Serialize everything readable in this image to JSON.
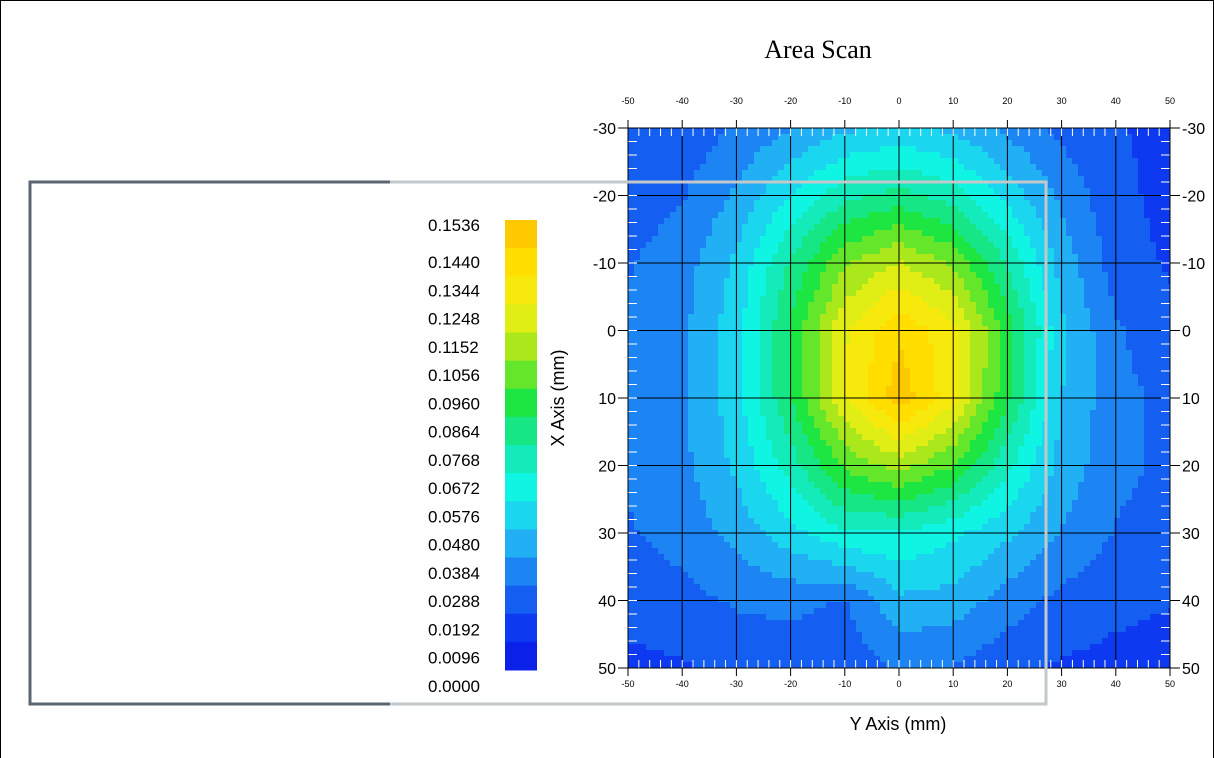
{
  "chart_data": {
    "type": "heatmap",
    "title": "Area Scan",
    "xlabel": "Y Axis (mm)",
    "ylabel": "X Axis (mm)",
    "x": [
      -50,
      -40,
      -30,
      -20,
      -10,
      0,
      10,
      20,
      30,
      40,
      50
    ],
    "y": [
      -30,
      -20,
      -10,
      0,
      10,
      20,
      30,
      40,
      50
    ],
    "xlim": [
      -50,
      50
    ],
    "ylim": [
      -30,
      50
    ],
    "x_ticks": [
      -50,
      -40,
      -30,
      -20,
      -10,
      0,
      10,
      20,
      30,
      40,
      50
    ],
    "y_ticks": [
      -30,
      -20,
      -10,
      0,
      10,
      20,
      30,
      40,
      50
    ],
    "grid": true,
    "values": [
      [
        0.02,
        0.022,
        0.03,
        0.038,
        0.046,
        0.05,
        0.046,
        0.036,
        0.026,
        0.02,
        0.016
      ],
      [
        0.024,
        0.028,
        0.04,
        0.058,
        0.074,
        0.08,
        0.072,
        0.054,
        0.036,
        0.022,
        0.016
      ],
      [
        0.028,
        0.034,
        0.05,
        0.078,
        0.104,
        0.116,
        0.104,
        0.076,
        0.044,
        0.024,
        0.018
      ],
      [
        0.03,
        0.036,
        0.054,
        0.088,
        0.124,
        0.142,
        0.128,
        0.092,
        0.05,
        0.03,
        0.022
      ],
      [
        0.03,
        0.036,
        0.054,
        0.086,
        0.124,
        0.15,
        0.128,
        0.088,
        0.048,
        0.032,
        0.026
      ],
      [
        0.03,
        0.036,
        0.05,
        0.072,
        0.098,
        0.11,
        0.096,
        0.07,
        0.044,
        0.032,
        0.026
      ],
      [
        0.028,
        0.032,
        0.042,
        0.054,
        0.066,
        0.066,
        0.06,
        0.05,
        0.038,
        0.028,
        0.024
      ],
      [
        0.024,
        0.026,
        0.03,
        0.032,
        0.028,
        0.046,
        0.044,
        0.034,
        0.026,
        0.022,
        0.02
      ],
      [
        0.016,
        0.018,
        0.022,
        0.022,
        0.022,
        0.03,
        0.028,
        0.022,
        0.018,
        0.016,
        0.014
      ]
    ],
    "colorbar": {
      "labels": [
        "0.1536",
        "0.1440",
        "0.1344",
        "0.1248",
        "0.1152",
        "0.1056",
        "0.0960",
        "0.0864",
        "0.0768",
        "0.0672",
        "0.0576",
        "0.0480",
        "0.0384",
        "0.0288",
        "0.0192",
        "0.0096",
        "0.0000"
      ],
      "min": 0.0,
      "max": 0.1536,
      "stops": [
        "#0a14e6",
        "#0d3cf2",
        "#1a78f2",
        "#22bdf5",
        "#10f5e8",
        "#14e6a6",
        "#1ee63c",
        "#9ae61e",
        "#f0f014",
        "#ffe000",
        "#ffbe00"
      ]
    }
  }
}
